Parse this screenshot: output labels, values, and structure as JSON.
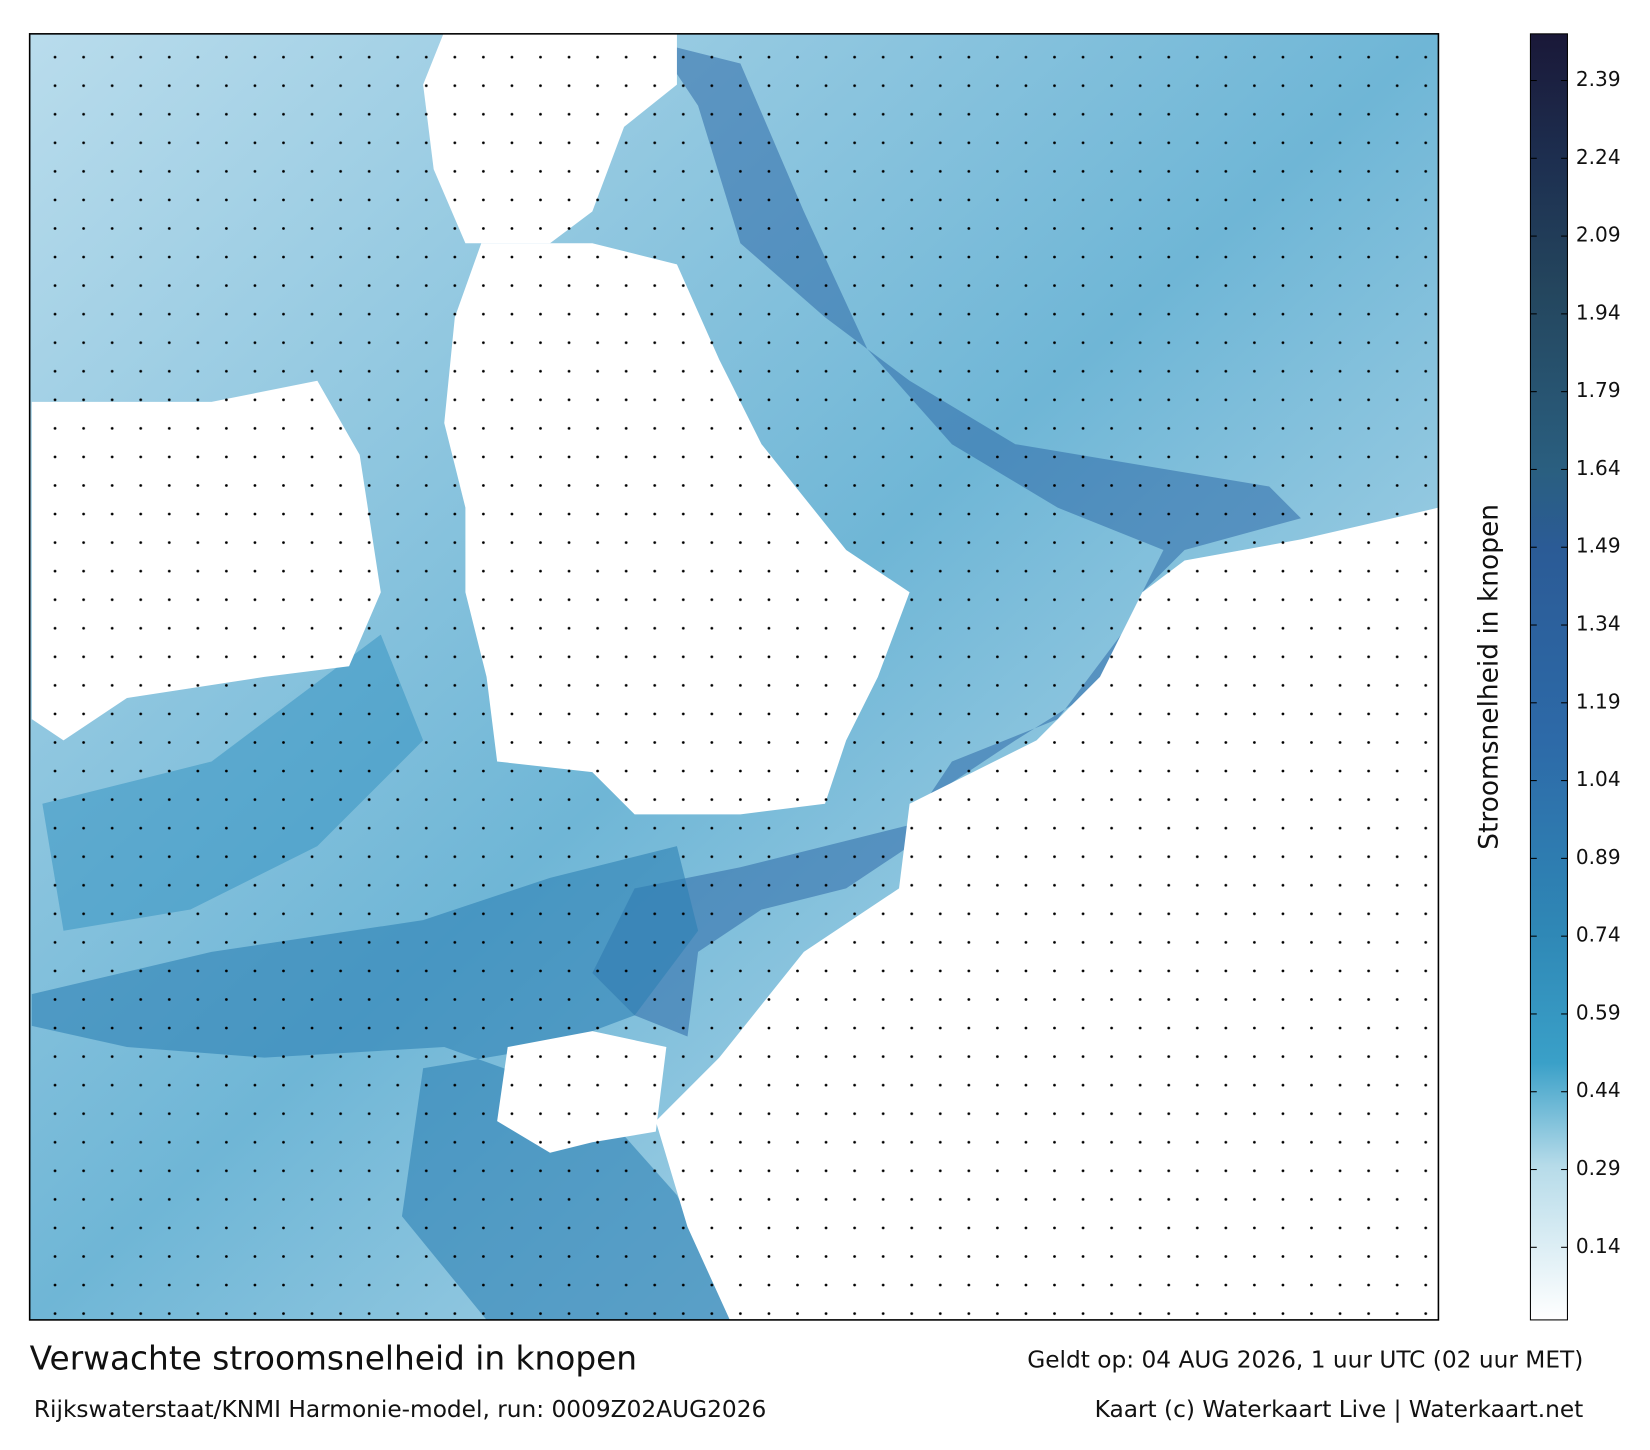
{
  "header": {
    "title": "Verwachte stroomsnelheid in knopen",
    "subtitle": "Rijkswaterstaat/KNMI Harmonie-model, run: 0009Z02AUG2026",
    "valid": "Geldt op: 04 AUG 2026, 1 uur UTC (02 uur MET)",
    "credit": "Kaart (c) Waterkaart Live | Waterkaart.net"
  },
  "colorbar": {
    "label": "Stroomsnelheid in knopen",
    "range": [
      0,
      2.48
    ],
    "ticks": [
      0.14,
      0.29,
      0.44,
      0.59,
      0.74,
      0.89,
      1.04,
      1.19,
      1.34,
      1.49,
      1.64,
      1.79,
      1.94,
      2.09,
      2.24,
      2.39
    ]
  }
}
